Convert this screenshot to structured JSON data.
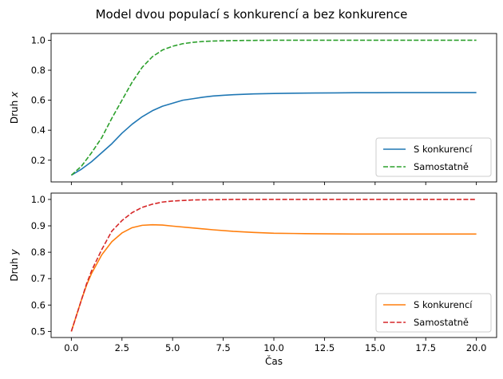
{
  "title": "Model dvou populací s konkurencí a bez konkurence",
  "chart_data": [
    {
      "type": "line",
      "ylabel_prefix": "Druh ",
      "ylabel_var": "x",
      "xlabel": "",
      "xlim": [
        -1.0,
        21.0
      ],
      "ylim": [
        0.055,
        1.045
      ],
      "xticks": [
        0,
        2.5,
        5,
        7.5,
        10,
        12.5,
        15,
        17.5,
        20
      ],
      "xticklabels_visible": false,
      "yticks": [
        0.2,
        0.4,
        0.6,
        0.8,
        1.0
      ],
      "yticklabels": [
        "0.2",
        "0.4",
        "0.6",
        "0.8",
        "1.0"
      ],
      "grid": false,
      "legend_position": "lower-right",
      "series": [
        {
          "name": "S konkurencí",
          "color": "#1f77b4",
          "style": "solid",
          "x": [
            0,
            0.5,
            1,
            1.5,
            2,
            2.5,
            3,
            3.5,
            4,
            4.5,
            5,
            5.5,
            6,
            6.5,
            7,
            7.5,
            8,
            9,
            10,
            11,
            12,
            13,
            14,
            15,
            16,
            17,
            18,
            19,
            20
          ],
          "y": [
            0.1,
            0.14,
            0.19,
            0.25,
            0.31,
            0.38,
            0.44,
            0.49,
            0.53,
            0.56,
            0.58,
            0.6,
            0.61,
            0.62,
            0.628,
            0.633,
            0.637,
            0.642,
            0.645,
            0.647,
            0.648,
            0.649,
            0.65,
            0.65,
            0.651,
            0.651,
            0.651,
            0.651,
            0.651
          ]
        },
        {
          "name": "Samostatně",
          "color": "#2ca02c",
          "style": "dashed",
          "x": [
            0,
            0.5,
            1,
            1.5,
            2,
            2.5,
            3,
            3.5,
            4,
            4.5,
            5,
            5.5,
            6,
            6.5,
            7,
            8,
            9,
            10,
            12,
            14,
            16,
            18,
            20
          ],
          "y": [
            0.1,
            0.16,
            0.25,
            0.35,
            0.48,
            0.6,
            0.72,
            0.82,
            0.89,
            0.935,
            0.96,
            0.977,
            0.986,
            0.992,
            0.995,
            0.998,
            0.999,
            1.0,
            1.0,
            1.0,
            1.0,
            1.0,
            1.0
          ]
        }
      ]
    },
    {
      "type": "line",
      "ylabel_prefix": "Druh ",
      "ylabel_var": "y",
      "xlabel": "Čas",
      "xlim": [
        -1.0,
        21.0
      ],
      "ylim": [
        0.477,
        1.024
      ],
      "xticks": [
        0,
        2.5,
        5,
        7.5,
        10,
        12.5,
        15,
        17.5,
        20
      ],
      "xticklabels": [
        "0.0",
        "2.5",
        "5.0",
        "7.5",
        "10.0",
        "12.5",
        "15.0",
        "17.5",
        "20.0"
      ],
      "yticks": [
        0.5,
        0.6,
        0.7,
        0.8,
        0.9,
        1.0
      ],
      "yticklabels": [
        "0.5",
        "0.6",
        "0.7",
        "0.8",
        "0.9",
        "1.0"
      ],
      "grid": false,
      "legend_position": "lower-right",
      "series": [
        {
          "name": "S konkurencí",
          "color": "#ff7f0e",
          "style": "solid",
          "x": [
            0,
            0.25,
            0.5,
            0.75,
            1,
            1.5,
            2,
            2.5,
            3,
            3.5,
            4,
            4.5,
            5,
            6,
            7,
            8,
            9,
            10,
            11,
            12,
            14,
            16,
            18,
            20
          ],
          "y": [
            0.5,
            0.56,
            0.62,
            0.675,
            0.72,
            0.79,
            0.84,
            0.873,
            0.893,
            0.902,
            0.904,
            0.903,
            0.899,
            0.892,
            0.885,
            0.879,
            0.875,
            0.872,
            0.871,
            0.87,
            0.869,
            0.869,
            0.869,
            0.869
          ]
        },
        {
          "name": "Samostatně",
          "color": "#d62728",
          "style": "dashed",
          "x": [
            0,
            0.25,
            0.5,
            0.75,
            1,
            1.5,
            2,
            2.5,
            3,
            3.5,
            4,
            4.5,
            5,
            6,
            7,
            8,
            9,
            10,
            12,
            14,
            16,
            18,
            20
          ],
          "y": [
            0.5,
            0.56,
            0.62,
            0.68,
            0.73,
            0.81,
            0.88,
            0.92,
            0.95,
            0.97,
            0.982,
            0.99,
            0.994,
            0.998,
            0.999,
            1.0,
            1.0,
            1.0,
            1.0,
            1.0,
            1.0,
            1.0,
            1.0
          ]
        }
      ]
    }
  ]
}
